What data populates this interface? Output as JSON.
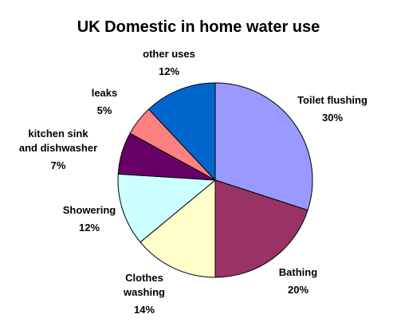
{
  "chart_data": {
    "type": "pie",
    "title": "UK Domestic in home water use",
    "start_angle_deg": 0,
    "direction": "clockwise",
    "slices": [
      {
        "label": "Toilet flushing",
        "value": 30,
        "value_label": "30%",
        "color": "#9999FF"
      },
      {
        "label": "Bathing",
        "value": 20,
        "value_label": "20%",
        "color": "#993366"
      },
      {
        "label": "Clothes washing",
        "value": 14,
        "value_label": "14%",
        "color": "#FFFFCC"
      },
      {
        "label": "Showering",
        "value": 12,
        "value_label": "12%",
        "color": "#CCFFFF"
      },
      {
        "label": "kitchen sink and dishwasher",
        "value": 7,
        "value_label": "7%",
        "color": "#660066"
      },
      {
        "label": "leaks",
        "value": 5,
        "value_label": "5%",
        "color": "#FF8080"
      },
      {
        "label": "other uses",
        "value": 12,
        "value_label": "12%",
        "color": "#0066CC"
      }
    ]
  }
}
